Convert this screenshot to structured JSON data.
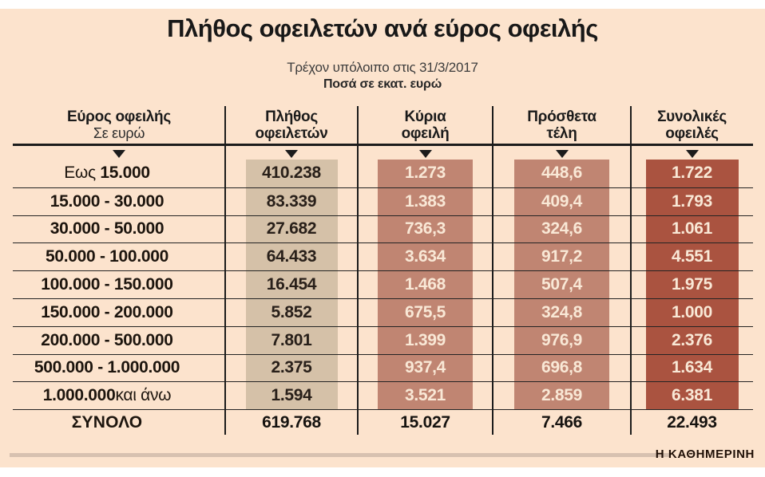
{
  "title": "Πλήθος οφειλετών ανά εύρος οφειλής",
  "subtitle": "Τρέχον υπόλοιπο στις 31/3/2017",
  "units_note": "Ποσά σε εκατ. ευρώ",
  "branding": "Η ΚΑΘΗΜΕΡΙΝΗ",
  "colors": {
    "panel_bg": "#fce3cd",
    "debtors_band": "#d5c1a8",
    "debt_band": "#c08572",
    "total_band": "#aa5340",
    "line": "#1c1c1c",
    "light_text": "#f9e8d6"
  },
  "columns": [
    {
      "line1": "Εύρος οφειλής",
      "line2": "Σε ευρώ"
    },
    {
      "line1": "Πλήθος",
      "line2": "οφειλετών"
    },
    {
      "line1": "Κύρια",
      "line2": "οφειλή"
    },
    {
      "line1": "Πρόσθετα",
      "line2": "τέλη"
    },
    {
      "line1": "Συνολικές",
      "line2": "οφειλές"
    }
  ],
  "rows": [
    {
      "pre": "Εως ",
      "main": "15.000",
      "post": "",
      "debtors": "410.238",
      "main_debt": "1.273",
      "fees": "448,6",
      "total": "1.722"
    },
    {
      "pre": "",
      "main": "15.000 - 30.000",
      "post": "",
      "debtors": "83.339",
      "main_debt": "1.383",
      "fees": "409,4",
      "total": "1.793"
    },
    {
      "pre": "",
      "main": "30.000 - 50.000",
      "post": "",
      "debtors": "27.682",
      "main_debt": "736,3",
      "fees": "324,6",
      "total": "1.061"
    },
    {
      "pre": "",
      "main": "50.000 - 100.000",
      "post": "",
      "debtors": "64.433",
      "main_debt": "3.634",
      "fees": "917,2",
      "total": "4.551"
    },
    {
      "pre": "",
      "main": "100.000 - 150.000",
      "post": "",
      "debtors": "16.454",
      "main_debt": "1.468",
      "fees": "507,4",
      "total": "1.975"
    },
    {
      "pre": "",
      "main": "150.000 - 200.000",
      "post": "",
      "debtors": "5.852",
      "main_debt": "675,5",
      "fees": "324,8",
      "total": "1.000"
    },
    {
      "pre": "",
      "main": "200.000 - 500.000",
      "post": "",
      "debtors": "7.801",
      "main_debt": "1.399",
      "fees": "976,9",
      "total": "2.376"
    },
    {
      "pre": "",
      "main": "500.000 - 1.000.000",
      "post": "",
      "debtors": "2.375",
      "main_debt": "937,4",
      "fees": "696,8",
      "total": "1.634"
    },
    {
      "pre": "",
      "main": "1.000.000",
      "post": " και άνω",
      "debtors": "1.594",
      "main_debt": "3.521",
      "fees": "2.859",
      "total": "6.381"
    }
  ],
  "total_row": {
    "label": "ΣΥΝΟΛΟ",
    "debtors": "619.768",
    "main_debt": "15.027",
    "fees": "7.466",
    "total": "22.493"
  },
  "chart_data": {
    "type": "table",
    "title": "Πλήθος οφειλετών ανά εύρος οφειλής",
    "subtitle": "Τρέχον υπόλοιπο στις 31/3/2017",
    "units": "Ποσά σε εκατ. ευρώ",
    "columns": [
      "Εύρος οφειλής (Σε ευρώ)",
      "Πλήθος οφειλετών",
      "Κύρια οφειλή",
      "Πρόσθετα τέλη",
      "Συνολικές οφειλές"
    ],
    "rows": [
      [
        "Εως 15.000",
        410238,
        1273,
        448.6,
        1722
      ],
      [
        "15.000 - 30.000",
        83339,
        1383,
        409.4,
        1793
      ],
      [
        "30.000 - 50.000",
        27682,
        736.3,
        324.6,
        1061
      ],
      [
        "50.000 - 100.000",
        64433,
        3634,
        917.2,
        4551
      ],
      [
        "100.000 - 150.000",
        16454,
        1468,
        507.4,
        1975
      ],
      [
        "150.000 - 200.000",
        5852,
        675.5,
        324.8,
        1000
      ],
      [
        "200.000 - 500.000",
        7801,
        1399,
        976.9,
        2376
      ],
      [
        "500.000 - 1.000.000",
        2375,
        937.4,
        696.8,
        1634
      ],
      [
        "1.000.000 και άνω",
        1594,
        3521,
        2859,
        6381
      ]
    ],
    "total": [
      "ΣΥΝΟΛΟ",
      619768,
      15027,
      7466,
      22493
    ]
  }
}
